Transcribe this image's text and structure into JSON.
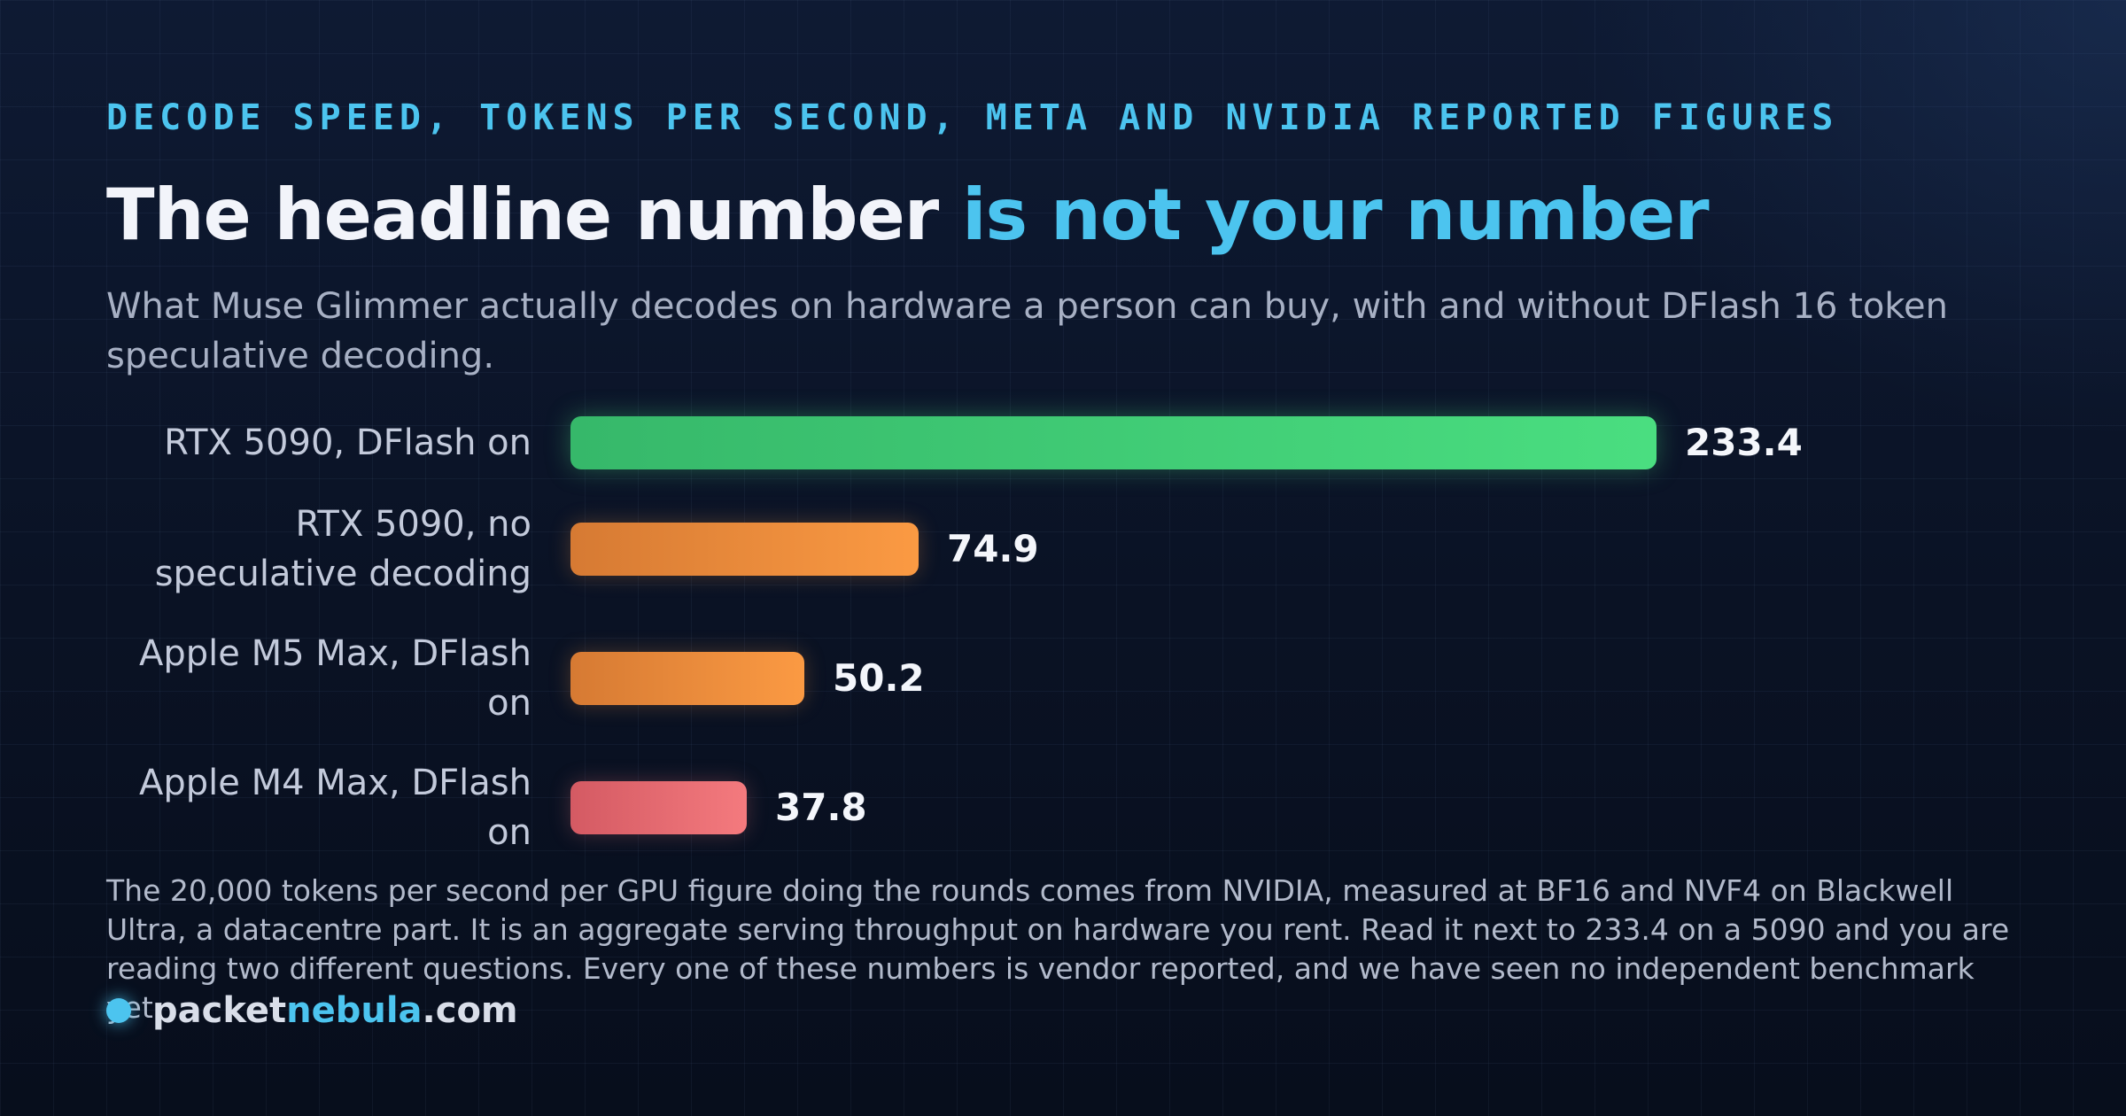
{
  "header": {
    "eyebrow": "DECODE SPEED, TOKENS PER SECOND, META AND NVIDIA REPORTED FIGURES",
    "title_main": "The headline number",
    "title_accent": "is not your number",
    "subtitle": "What Muse Glimmer actually decodes on hardware a person can buy, with and without DFlash 16 token speculative decoding."
  },
  "chart_data": {
    "type": "bar",
    "orientation": "horizontal",
    "categories": [
      "RTX 5090, DFlash on",
      "RTX 5090, no speculative decoding",
      "Apple M5 Max, DFlash on",
      "Apple M4 Max, DFlash on"
    ],
    "values": [
      233.4,
      74.9,
      50.2,
      37.8
    ],
    "value_labels": [
      "233.4",
      "74.9",
      "50.2",
      "37.8"
    ],
    "colors": [
      "#4ade80",
      "#fb9a43",
      "#fb9a43",
      "#f47a7e"
    ],
    "xlim": [
      0,
      233.4
    ],
    "grid": false,
    "legend": "none"
  },
  "footnote": "The 20,000 tokens per second per GPU figure doing the rounds comes from NVIDIA, measured at BF16 and NVF4 on Blackwell Ultra, a datacentre part. It is an aggregate serving throughput on hardware you rent. Read it next to 233.4 on a 5090 and you are reading two different questions. Every one of these numbers is vendor reported, and we have seen no independent benchmark yet.",
  "brand": {
    "part1": "packet",
    "part2": "nebula",
    "part3": ".com",
    "dot_color": "#4cc4ef"
  }
}
